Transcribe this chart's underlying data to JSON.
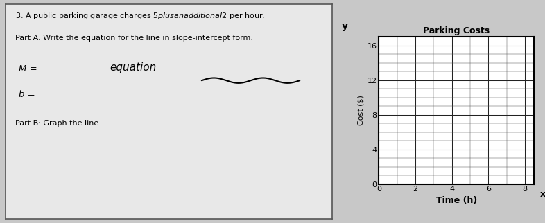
{
  "title": "Parking Costs",
  "xlabel": "Time (h)",
  "ylabel": "Cost ($)",
  "xlim": [
    0,
    8.5
  ],
  "ylim": [
    0,
    17
  ],
  "xticks": [
    0,
    2,
    4,
    6,
    8
  ],
  "yticks": [
    0,
    4,
    8,
    12,
    16
  ],
  "outer_bg": "#c8c8c8",
  "panel_bg": "#e8e8e8",
  "plot_bg": "#ffffff",
  "text_problem": "3. A public parking garage charges $5 plus an additional $2 per hour.",
  "text_parta": "Part A: Write the equation for the line in slope-intercept form.",
  "text_m": "M =",
  "text_b": "b =",
  "text_equation": "equation",
  "text_partb": "Part B: Graph the line",
  "chart_title_fontsize": 9,
  "label_fontsize": 8,
  "tick_fontsize": 8
}
